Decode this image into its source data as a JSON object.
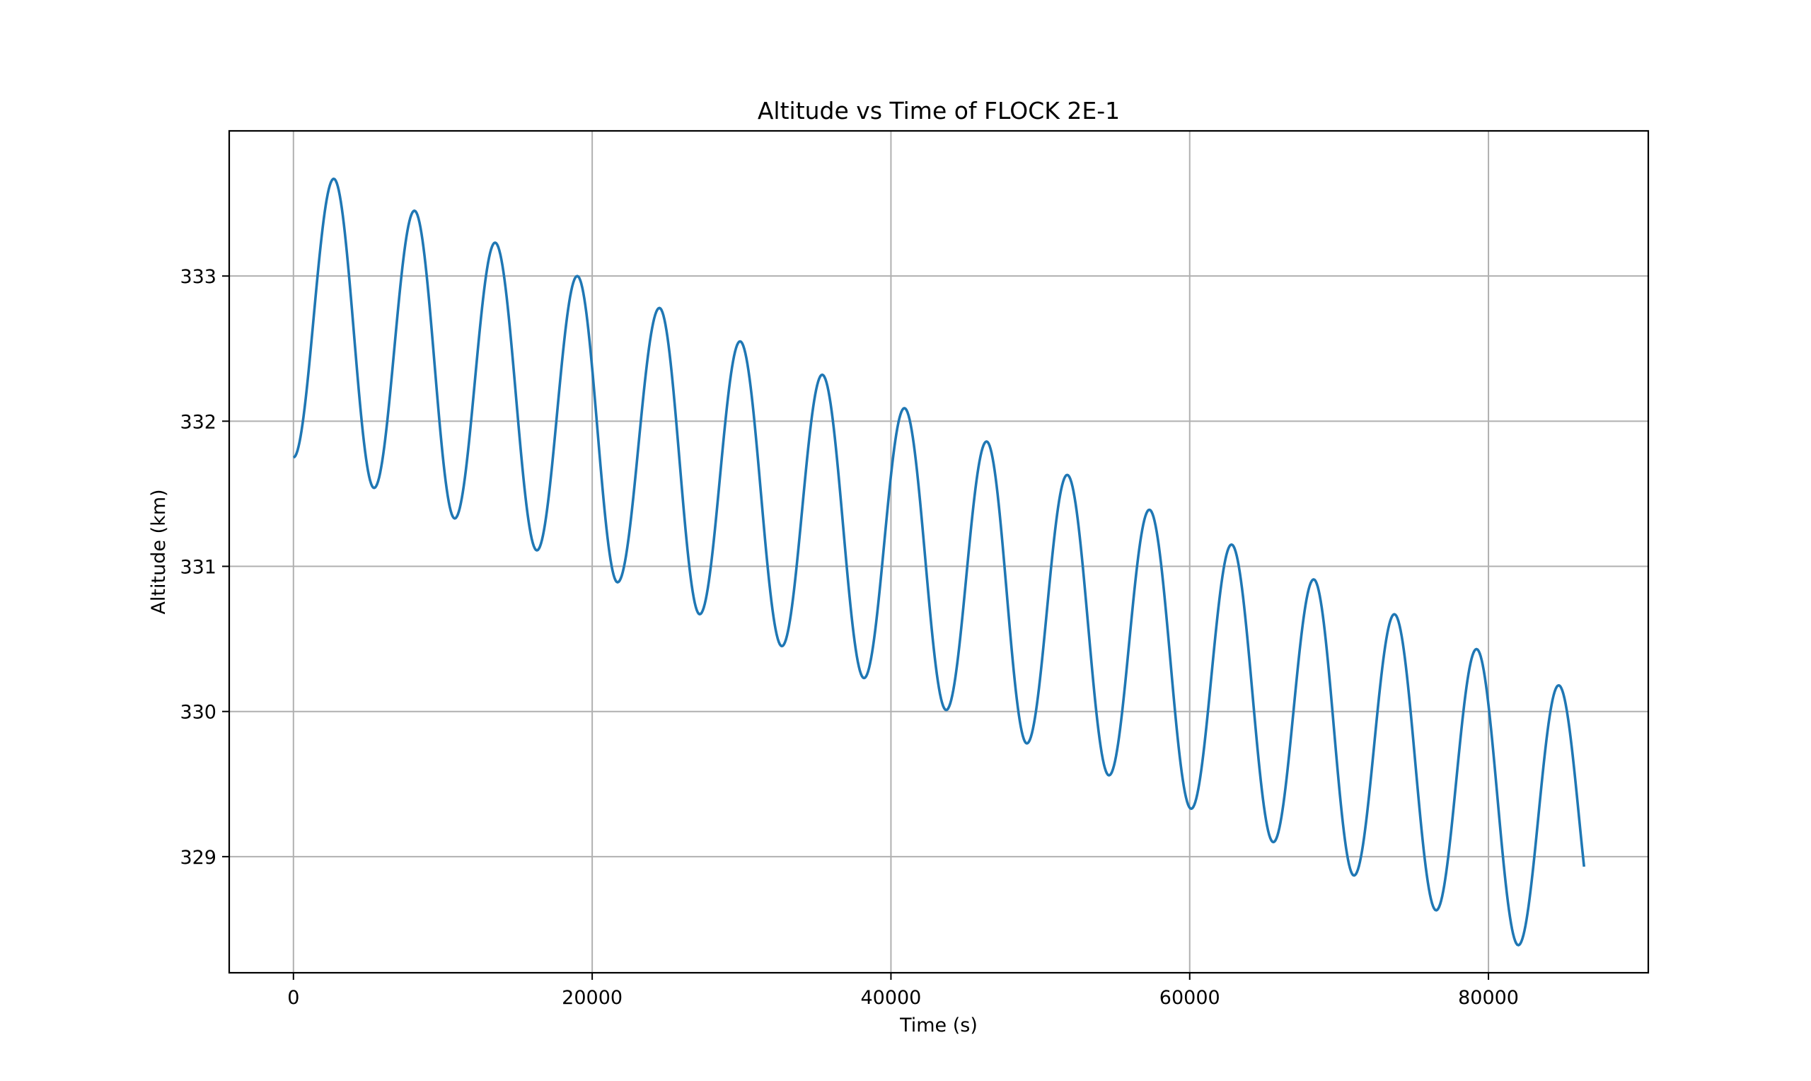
{
  "chart_data": {
    "type": "line",
    "title": "Altitude vs Time of FLOCK 2E-1",
    "xlabel": "Time (s)",
    "ylabel": "Altitude (km)",
    "xlim": [
      -4300,
      90700
    ],
    "ylim": [
      328.2,
      334.0
    ],
    "xticks": [
      0,
      20000,
      40000,
      60000,
      80000
    ],
    "xtick_labels": [
      "0",
      "20000",
      "40000",
      "60000",
      "80000"
    ],
    "yticks": [
      329,
      330,
      331,
      332,
      333
    ],
    "ytick_labels": [
      "329",
      "330",
      "331",
      "332",
      "333"
    ],
    "grid": true,
    "line_color": "#1f77b4",
    "series": [
      {
        "x": [
          0,
          2700,
          5400,
          8100,
          10800,
          13500,
          16300,
          19000,
          21700,
          24500,
          27200,
          29900,
          32700,
          35400,
          38200,
          40900,
          43700,
          46400,
          49100,
          51800,
          54600,
          57300,
          60100,
          62800,
          65600,
          68300,
          71000,
          73700,
          76500,
          79200,
          82000,
          84700,
          86400
        ],
        "values": [
          331.75,
          333.67,
          331.54,
          333.45,
          331.33,
          333.23,
          331.11,
          333.0,
          330.89,
          332.78,
          330.67,
          332.55,
          330.45,
          332.32,
          330.23,
          332.09,
          330.01,
          331.86,
          329.78,
          331.63,
          329.56,
          331.39,
          329.33,
          331.15,
          329.1,
          330.91,
          328.87,
          330.67,
          328.63,
          330.43,
          328.39,
          330.18,
          328.69
        ]
      }
    ]
  }
}
